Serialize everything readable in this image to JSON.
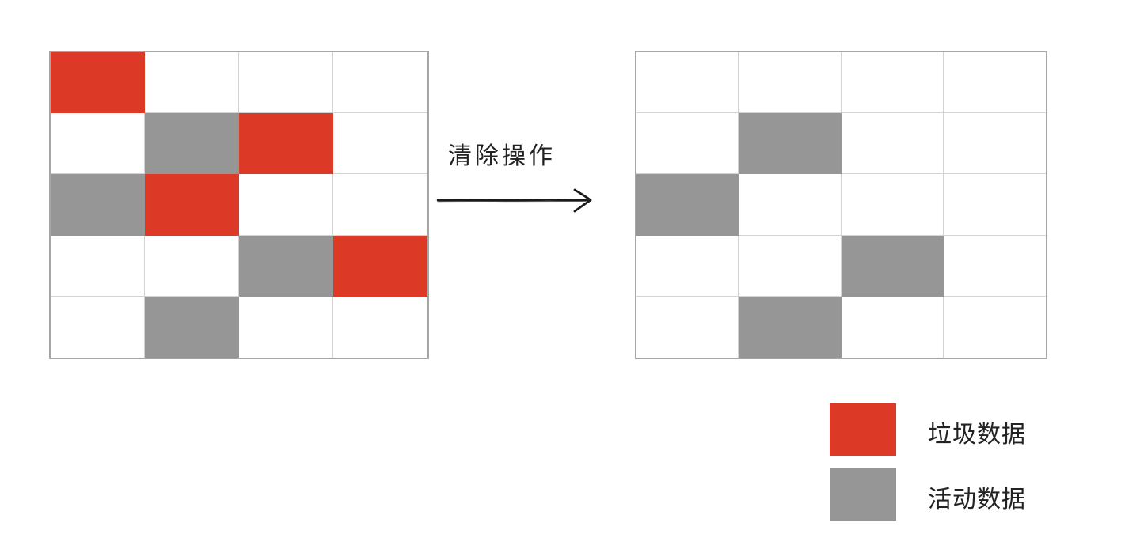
{
  "operation_label": "清除操作",
  "legend": {
    "garbage_label": "垃圾数据",
    "active_label": "活动数据",
    "garbage_color": "#dc3a26",
    "active_color": "#969696"
  },
  "before_grid": {
    "rows": 5,
    "cols": 4,
    "cells": [
      [
        "garbage",
        "empty",
        "empty",
        "empty"
      ],
      [
        "empty",
        "active",
        "garbage",
        "empty"
      ],
      [
        "active",
        "garbage",
        "empty",
        "empty"
      ],
      [
        "empty",
        "empty",
        "active",
        "garbage"
      ],
      [
        "empty",
        "active",
        "empty",
        "empty"
      ]
    ]
  },
  "after_grid": {
    "rows": 5,
    "cols": 4,
    "cells": [
      [
        "empty",
        "empty",
        "empty",
        "empty"
      ],
      [
        "empty",
        "active",
        "empty",
        "empty"
      ],
      [
        "active",
        "empty",
        "empty",
        "empty"
      ],
      [
        "empty",
        "empty",
        "active",
        "empty"
      ],
      [
        "empty",
        "active",
        "empty",
        "empty"
      ]
    ]
  }
}
